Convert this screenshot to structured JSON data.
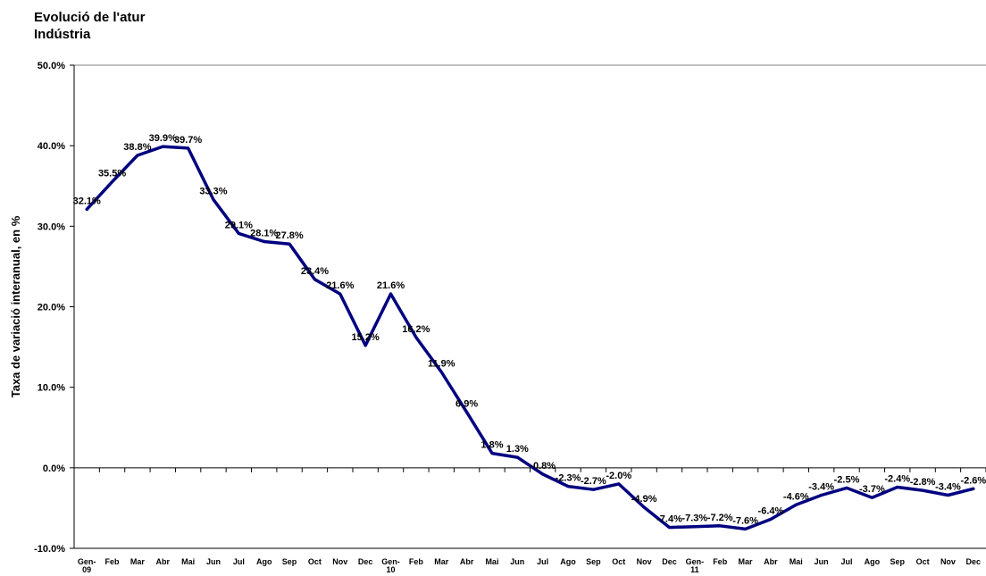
{
  "title_line1": "Evolució de l'atur",
  "title_line2": "Indústria",
  "chart_data": {
    "type": "line",
    "ylabel": "Taxa de variació interanual, en %",
    "xlabel": "",
    "ylim": [
      -10,
      50
    ],
    "yticks": [
      -10,
      0,
      10,
      20,
      30,
      40,
      50
    ],
    "ytick_labels": [
      "-10.0%",
      "0.0%",
      "10.0%",
      "20.0%",
      "30.0%",
      "40.0%",
      "50.0%"
    ],
    "categories": [
      [
        "Gen-",
        "09"
      ],
      [
        "Feb"
      ],
      [
        "Mar"
      ],
      [
        "Abr"
      ],
      [
        "Mai"
      ],
      [
        "Jun"
      ],
      [
        "Jul"
      ],
      [
        "Ago"
      ],
      [
        "Sep"
      ],
      [
        "Oct"
      ],
      [
        "Nov"
      ],
      [
        "Dec"
      ],
      [
        "Gen-",
        "10"
      ],
      [
        "Feb"
      ],
      [
        "Mar"
      ],
      [
        "Abr"
      ],
      [
        "Mai"
      ],
      [
        "Jun"
      ],
      [
        "Jul"
      ],
      [
        "Ago"
      ],
      [
        "Sep"
      ],
      [
        "Oct"
      ],
      [
        "Nov"
      ],
      [
        "Dec"
      ],
      [
        "Gen-",
        "11"
      ],
      [
        "Feb"
      ],
      [
        "Mar"
      ],
      [
        "Abr"
      ],
      [
        "Mai"
      ],
      [
        "Jun"
      ],
      [
        "Jul"
      ],
      [
        "Ago"
      ],
      [
        "Sep"
      ],
      [
        "Oct"
      ],
      [
        "Nov"
      ],
      [
        "Dec"
      ]
    ],
    "series": [
      {
        "color": "#000080",
        "values": [
          32.1,
          35.5,
          38.8,
          39.9,
          39.7,
          33.3,
          29.1,
          28.1,
          27.8,
          23.4,
          21.6,
          15.2,
          21.6,
          16.2,
          11.9,
          6.9,
          1.8,
          1.3,
          -0.8,
          -2.3,
          -2.7,
          -2.0,
          -4.9,
          -7.4,
          -7.3,
          -7.2,
          -7.6,
          -6.4,
          -4.6,
          -3.4,
          -2.5,
          -3.7,
          -2.4,
          -2.8,
          -3.4,
          -2.6
        ],
        "labels": [
          "32.1%",
          "35.5%",
          "38.8%",
          "39.9%",
          "39.7%",
          "33.3%",
          "29.1%",
          "28.1%",
          "27.8%",
          "23.4%",
          "21.6%",
          "15.2%",
          "21.6%",
          "16.2%",
          "11.9%",
          "6.9%",
          "1.8%",
          "1.3%",
          "-0.8%",
          "-2.3%",
          "-2.7%",
          "-2.0%",
          "-4.9%",
          "-7.4%",
          "-7.3%",
          "-7.2%",
          "-7.6%",
          "-6.4%",
          "-4.6%",
          "-3.4%",
          "-2.5%",
          "-3.7%",
          "-2.4%",
          "-2.8%",
          "-3.4%",
          "-2.6%"
        ]
      }
    ],
    "grid": false,
    "legend": "none"
  }
}
